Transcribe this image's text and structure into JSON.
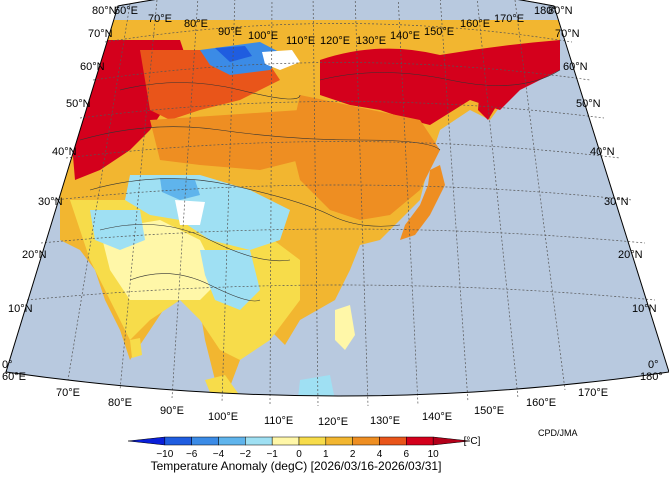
{
  "map": {
    "lat_labels_left": [
      "80°N",
      "70°N",
      "60°N",
      "50°N",
      "40°N",
      "30°N",
      "20°N",
      "10°N",
      "0°"
    ],
    "lat_labels_right": [
      "80°N",
      "70°N",
      "60°N",
      "50°N",
      "40°N",
      "30°N",
      "20°N",
      "10°N",
      "0°"
    ],
    "lon_labels_top": [
      "60°E",
      "70°E",
      "80°E",
      "90°E",
      "100°E",
      "110°E",
      "120°E",
      "130°E",
      "140°E",
      "150°E",
      "160°E",
      "170°E",
      "180°"
    ],
    "lon_labels_bottom": [
      "60°E",
      "70°E",
      "80°E",
      "90°E",
      "100°E",
      "110°E",
      "120°E",
      "130°E",
      "140°E",
      "150°E",
      "160°E",
      "170°E",
      "180°"
    ],
    "colors": {
      "ocean": "#b8c9df",
      "no_data": "#ffffff",
      "anom_minus10": "#0a1fd9",
      "anom_minus6": "#1f5de0",
      "anom_minus4": "#3b8be6",
      "anom_minus2": "#5fb4ec",
      "anom_minus1": "#9fe0f3",
      "anom_0": "#fff7a8",
      "anom_1": "#f7dc4a",
      "anom_2": "#f2b630",
      "anom_4": "#ee8e22",
      "anom_6": "#e9551a",
      "anom_10": "#d4001c"
    }
  },
  "colorbar": {
    "ticks": [
      "−10",
      "−6",
      "−4",
      "−2",
      "−1",
      "0",
      "1",
      "2",
      "4",
      "6",
      "10"
    ],
    "unit": "[°C]",
    "colors": [
      "#0a1fd9",
      "#1f5de0",
      "#3b8be6",
      "#5fb4ec",
      "#9fe0f3",
      "#fff7a8",
      "#f7dc4a",
      "#f2b630",
      "#ee8e22",
      "#e9551a",
      "#d4001c",
      "#b3001a"
    ]
  },
  "caption": "Temperature Anomaly (degC) [2026/03/16-2026/03/31]",
  "credit": "CPD/JMA"
}
